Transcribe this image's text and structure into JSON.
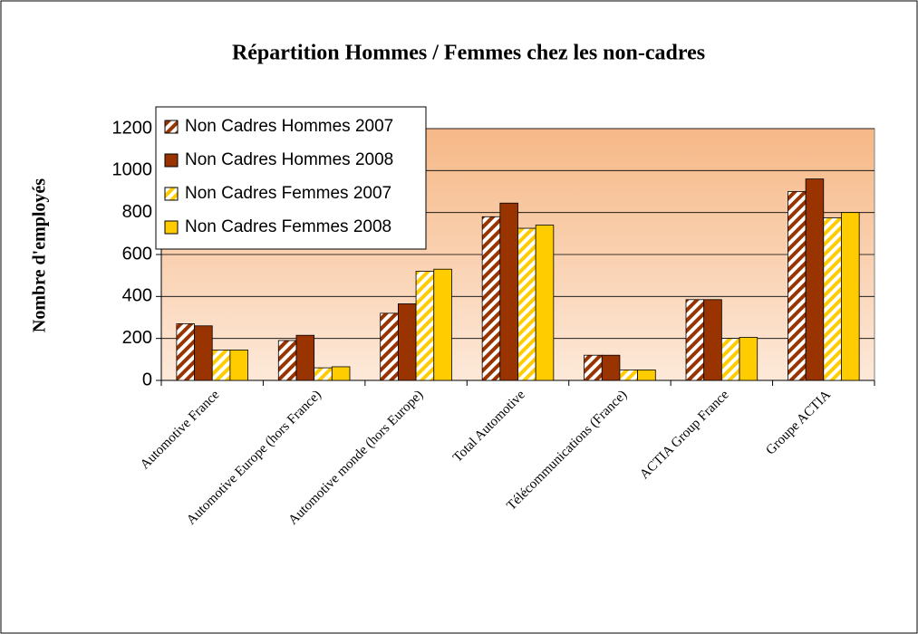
{
  "chart_data": {
    "type": "bar",
    "title": "Répartition Hommes / Femmes chez les non-cadres",
    "y_label": "Nombre d'employés",
    "categories": [
      "Automotive France",
      "Automotive Europe (hors France)",
      "Automotive monde (hors Europe)",
      "Total Automotive",
      "Télécommunications (France)",
      "ACTIA Group France",
      "Groupe ACTIA"
    ],
    "series": [
      {
        "name": "Non Cadres Hommes 2007",
        "color": "#993300",
        "hatch": true,
        "values": [
          270,
          190,
          320,
          780,
          120,
          385,
          900
        ]
      },
      {
        "name": "Non Cadres Hommes 2008",
        "color": "#993300",
        "hatch": false,
        "values": [
          260,
          215,
          365,
          845,
          120,
          385,
          960
        ]
      },
      {
        "name": "Non Cadres Femmes 2007",
        "color": "#ffcc00",
        "hatch": true,
        "values": [
          145,
          60,
          520,
          725,
          50,
          200,
          775
        ]
      },
      {
        "name": "Non Cadres Femmes 2008",
        "color": "#ffcc00",
        "hatch": false,
        "values": [
          145,
          65,
          530,
          740,
          50,
          205,
          800
        ]
      }
    ],
    "ylim": [
      0,
      1200
    ],
    "yticks": [
      0,
      200,
      400,
      600,
      800,
      1000,
      1200
    ],
    "grid": true,
    "legend": "top-left"
  }
}
